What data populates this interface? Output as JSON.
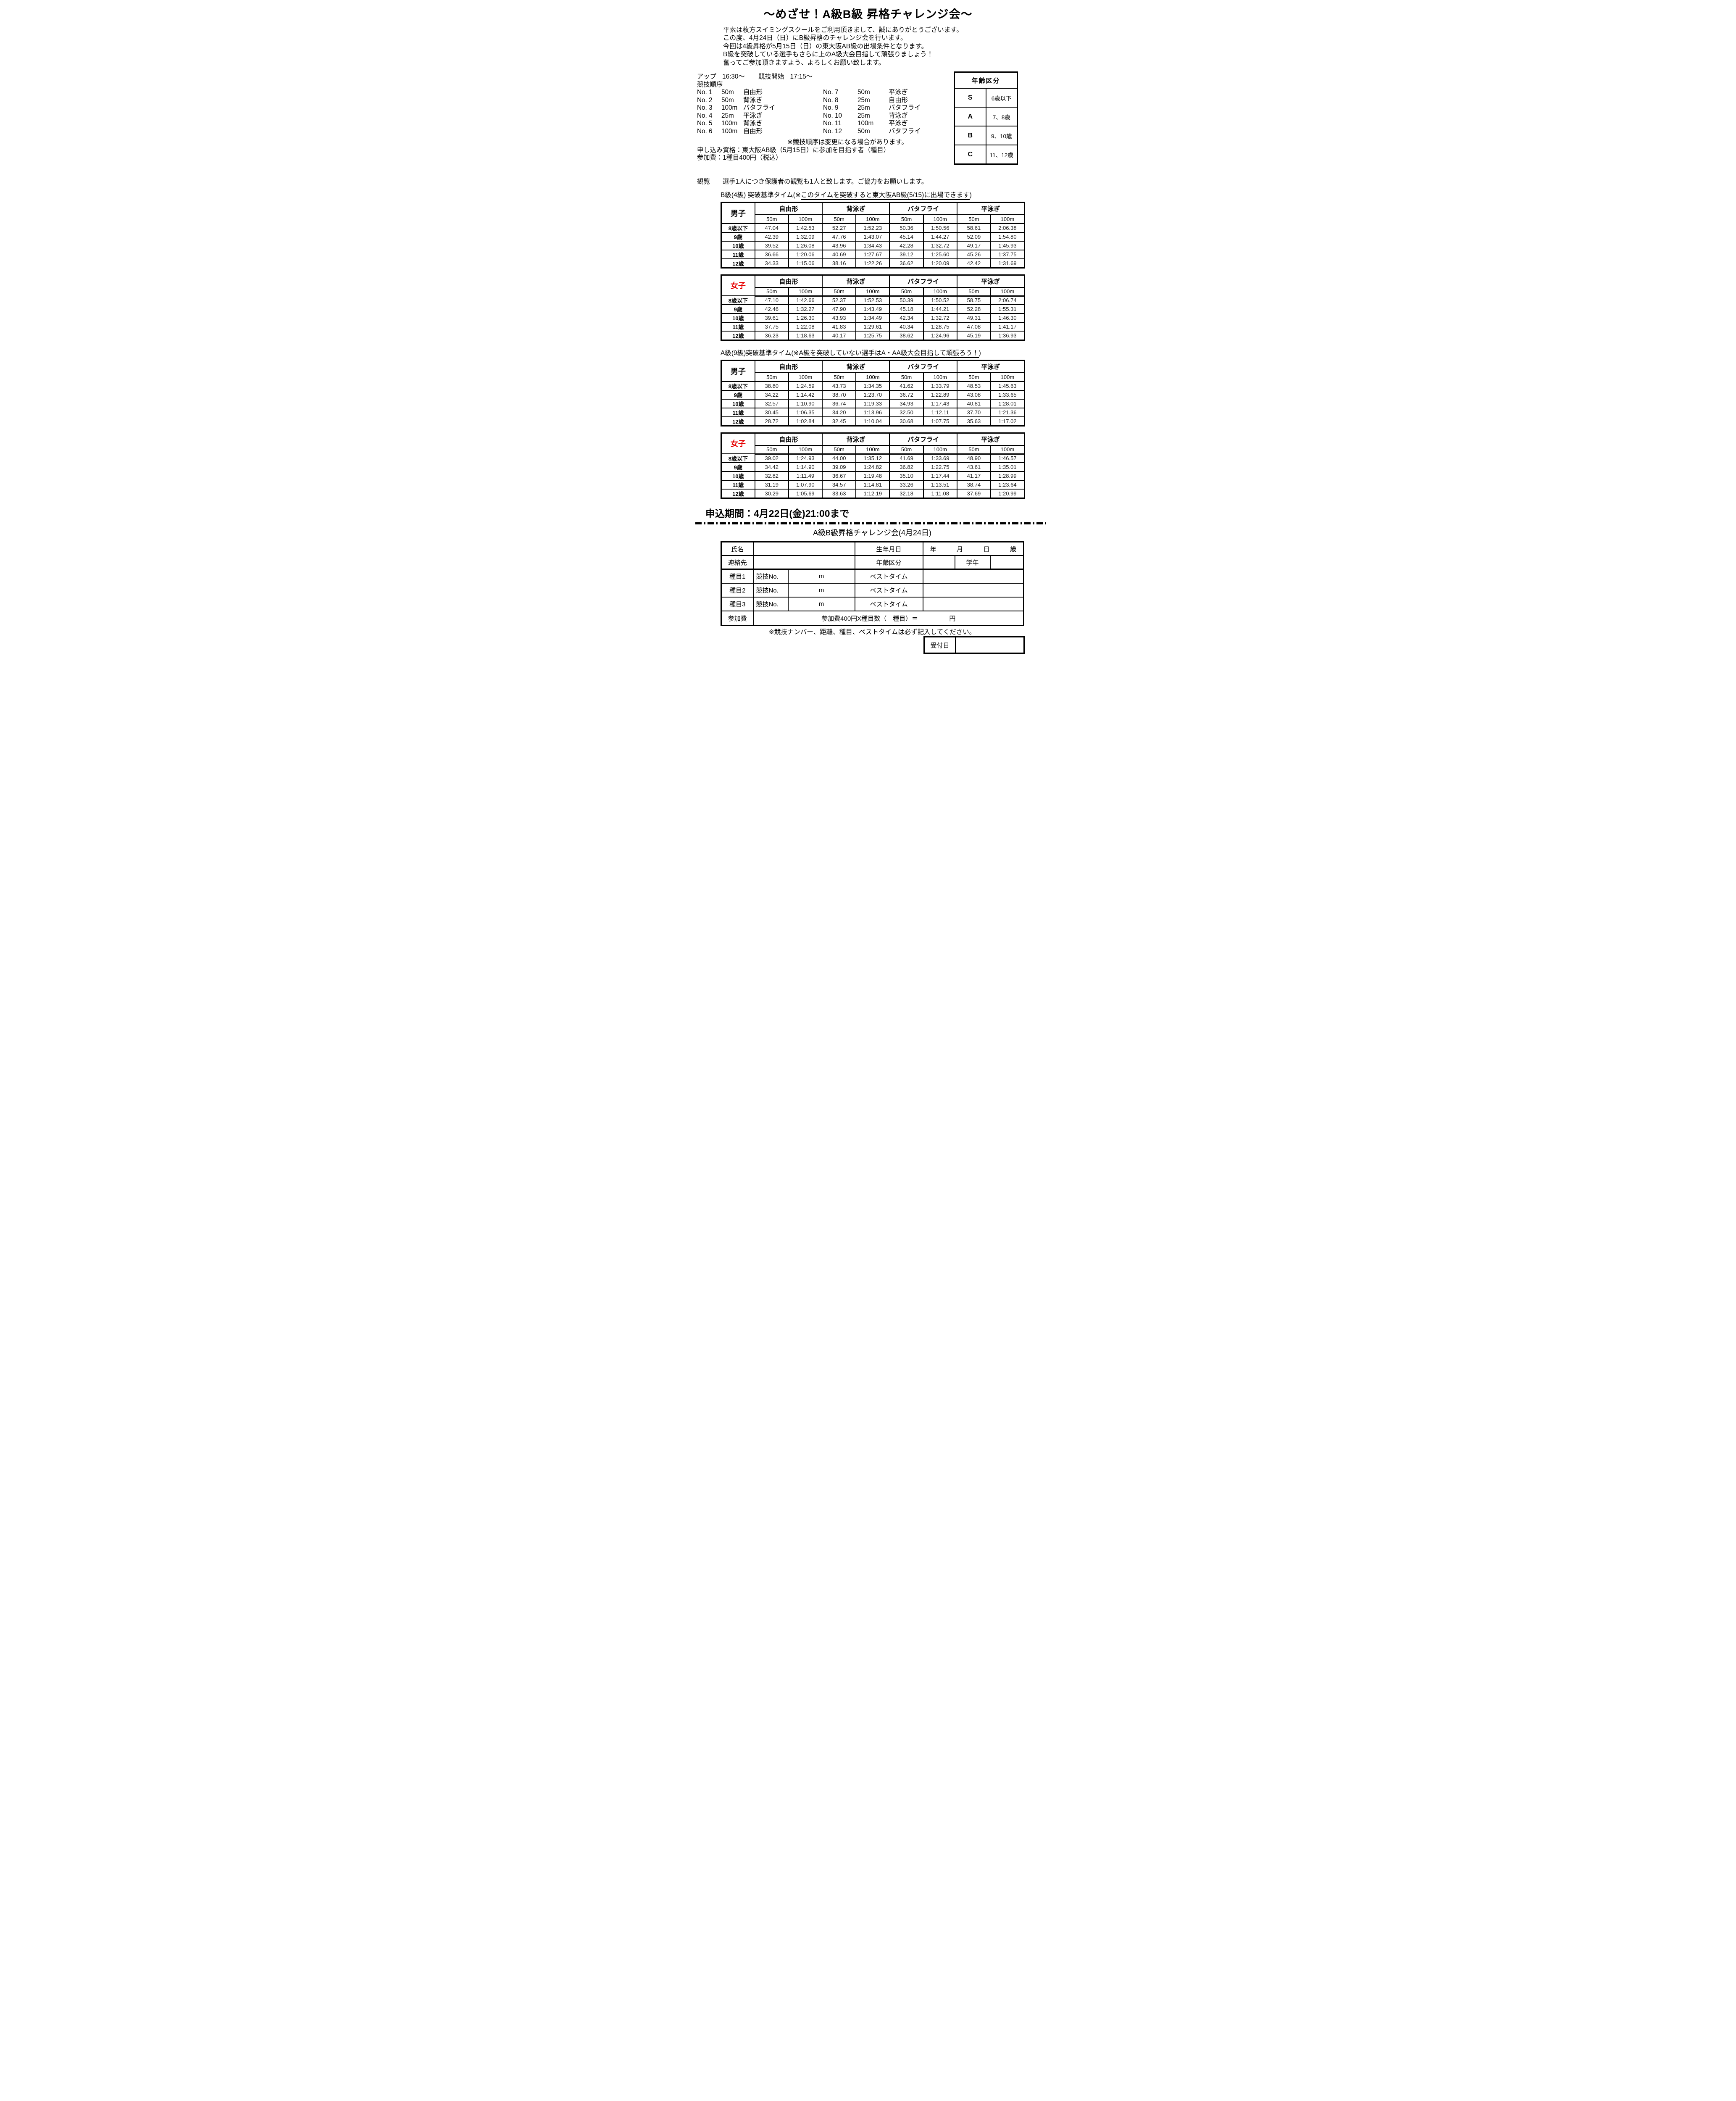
{
  "colors": {
    "accent_red": "#e60000"
  },
  "title": "～めざせ！A級B級 昇格チャレンジ会～",
  "intro_lines": [
    "平素は枚方スイミングスクールをご利用頂きまして、誠にありがとうございます。",
    "この度、4月24日（日）にB級昇格のチャレンジ会を行います。",
    "今回は4級昇格が5月15日（日）の東大阪AB級の出場条件となります。",
    "B級を突破している選手もさらに上のA級大会目指して頑張りましょう！",
    "奮ってご参加頂きますよう、よろしくお願い致します。"
  ],
  "schedule": {
    "warmup_label": "アップ",
    "warmup_time": "16:30～",
    "start_label": "競技開始",
    "start_time": "17:15～",
    "order_heading": "競技順序"
  },
  "events_left": [
    {
      "no": "No. 1",
      "dist": "50m",
      "stroke": "自由形"
    },
    {
      "no": "No. 2",
      "dist": "50m",
      "stroke": "背泳ぎ"
    },
    {
      "no": "No. 3",
      "dist": "100m",
      "stroke": "バタフライ"
    },
    {
      "no": "No. 4",
      "dist": "25m",
      "stroke": "平泳ぎ"
    },
    {
      "no": "No. 5",
      "dist": "100m",
      "stroke": "背泳ぎ"
    },
    {
      "no": "No. 6",
      "dist": "100m",
      "stroke": "自由形"
    }
  ],
  "events_right": [
    {
      "no": "No. 7",
      "dist": "50m",
      "stroke": "平泳ぎ"
    },
    {
      "no": "No. 8",
      "dist": "25m",
      "stroke": "自由形"
    },
    {
      "no": "No. 9",
      "dist": "25m",
      "stroke": "バタフライ"
    },
    {
      "no": "No. 10",
      "dist": "25m",
      "stroke": "背泳ぎ"
    },
    {
      "no": "No. 11",
      "dist": "100m",
      "stroke": "平泳ぎ"
    },
    {
      "no": "No. 12",
      "dist": "50m",
      "stroke": "バタフライ"
    }
  ],
  "order_note": "※競技順序は変更になる場合があります。",
  "qualification": "申し込み資格：東大阪AB級（5月15日）に参加を目指す者（種目）",
  "entry_fee": "参加費：1種目400円（税込）",
  "viewing": {
    "label": "観覧",
    "text": "選手1人につき保護者の観覧も1人と致します。ご協力をお願いします。"
  },
  "age_table": {
    "title": "年齢区分",
    "rows": [
      {
        "code": "S",
        "range": "6歳以下"
      },
      {
        "code": "A",
        "range": "7、8歳"
      },
      {
        "code": "B",
        "range": "9、10歳"
      },
      {
        "code": "C",
        "range": "11、12歳"
      }
    ]
  },
  "section_b": {
    "prefix": "B級(4級) 突破基準タイム(※",
    "underlined": "このタイムを突破すると東大阪AB級(5/15)に出場できます",
    "suffix": ")"
  },
  "section_a": {
    "prefix": "A級(9級)突破基準タイム(※",
    "underlined": "A級を突破していない選手はA・AA級大会目指して頑張ろう！",
    "suffix": ")"
  },
  "table_labels": {
    "men": "男子",
    "women": "女子",
    "strokes": [
      "自由形",
      "背泳ぎ",
      "バタフライ",
      "平泳ぎ"
    ],
    "distances": [
      "50m",
      "100m"
    ],
    "ages": [
      "8歳以下",
      "9歳",
      "10歳",
      "11歳",
      "12歳"
    ]
  },
  "times": {
    "b_men": [
      [
        "47.04",
        "1:42.53",
        "52.27",
        "1:52.23",
        "50.36",
        "1:50.56",
        "58.61",
        "2:06.38"
      ],
      [
        "42.39",
        "1:32.09",
        "47.76",
        "1:43.07",
        "45.14",
        "1:44.27",
        "52.09",
        "1:54.80"
      ],
      [
        "39.52",
        "1:26.08",
        "43.96",
        "1:34.43",
        "42.28",
        "1:32.72",
        "49.17",
        "1:45.93"
      ],
      [
        "36.66",
        "1:20.06",
        "40.69",
        "1:27.67",
        "39.12",
        "1:25.60",
        "45.26",
        "1:37.75"
      ],
      [
        "34.33",
        "1:15.06",
        "38.16",
        "1:22.26",
        "36.62",
        "1:20.09",
        "42.42",
        "1:31.69"
      ]
    ],
    "b_women": [
      [
        "47.10",
        "1:42.66",
        "52.37",
        "1:52.53",
        "50.39",
        "1:50.52",
        "58.75",
        "2:06.74"
      ],
      [
        "42.46",
        "1:32.27",
        "47.90",
        "1:43.49",
        "45.18",
        "1:44.21",
        "52.28",
        "1:55.31"
      ],
      [
        "39.61",
        "1:26.30",
        "43.93",
        "1:34.49",
        "42.34",
        "1:32.72",
        "49.31",
        "1:46.30"
      ],
      [
        "37.75",
        "1:22.08",
        "41.83",
        "1:29.61",
        "40.34",
        "1:28.75",
        "47.08",
        "1:41.17"
      ],
      [
        "36.23",
        "1:18.63",
        "40.17",
        "1:25.75",
        "38.62",
        "1:24.96",
        "45.19",
        "1:36.93"
      ]
    ],
    "a_men": [
      [
        "38.80",
        "1:24.59",
        "43.73",
        "1:34.35",
        "41.62",
        "1:33.79",
        "48.53",
        "1:45.63"
      ],
      [
        "34.22",
        "1:14.42",
        "38.70",
        "1:23.70",
        "36.72",
        "1:22.89",
        "43.08",
        "1:33.65"
      ],
      [
        "32.57",
        "1:10.90",
        "36.74",
        "1:19.33",
        "34.93",
        "1:17.43",
        "40.81",
        "1:28.01"
      ],
      [
        "30.45",
        "1:06.35",
        "34.20",
        "1:13.96",
        "32.50",
        "1:12.11",
        "37.70",
        "1:21.36"
      ],
      [
        "28.72",
        "1:02.84",
        "32.45",
        "1:10.04",
        "30.68",
        "1:07.75",
        "35.63",
        "1:17.02"
      ]
    ],
    "a_women": [
      [
        "39.02",
        "1:24.93",
        "44.00",
        "1:35.12",
        "41.69",
        "1:33.69",
        "48.90",
        "1:46.57"
      ],
      [
        "34.42",
        "1:14.90",
        "39.09",
        "1:24.82",
        "36.82",
        "1:22.75",
        "43.61",
        "1:35.01"
      ],
      [
        "32.82",
        "1:11.49",
        "36.67",
        "1:19.48",
        "35.10",
        "1:17.44",
        "41.17",
        "1:28.99"
      ],
      [
        "31.19",
        "1:07.90",
        "34.57",
        "1:14.81",
        "33.26",
        "1:13.51",
        "38.74",
        "1:23.64"
      ],
      [
        "30.29",
        "1:05.69",
        "33.63",
        "1:12.19",
        "32.18",
        "1:11.08",
        "37.69",
        "1:20.99"
      ]
    ]
  },
  "deadline": "申込期間：4月22日(金)21:00まで",
  "form": {
    "title": "A級B級昇格チャレンジ会(4月24日)",
    "name_label": "氏名",
    "birth_label": "生年月日",
    "ymd": [
      "年",
      "月",
      "日",
      "歳"
    ],
    "contact_label": "連絡先",
    "age_class_label": "年齢区分",
    "grade_label": "学年",
    "event_rows": [
      "種目1",
      "種目2",
      "種目3"
    ],
    "race_no_label": "競技No.",
    "meters_label": "m",
    "best_time_label": "ベストタイム",
    "fee_label": "参加費",
    "fee_formula": "参加費400円X種目数（　種目）＝",
    "fee_unit": "円"
  },
  "fill_note": "※競技ナンバー、距離、種目、ベストタイムは必ず記入してください。",
  "reception_label": "受付日"
}
